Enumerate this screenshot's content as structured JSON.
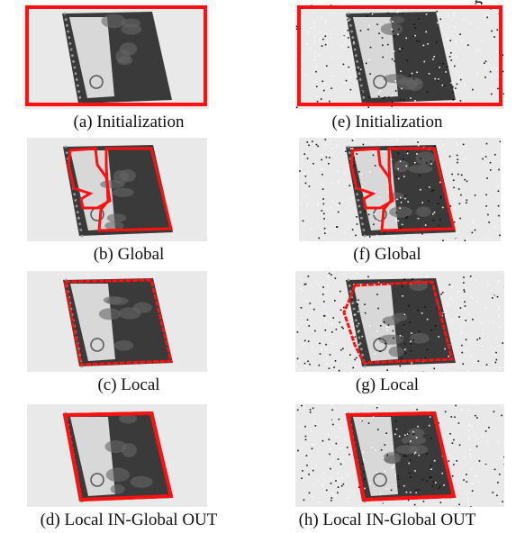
{
  "figure": {
    "top_cut_text": "g",
    "panels": [
      {
        "id": "a",
        "caption": "(a) Initialization",
        "noisy": false,
        "contour": "box"
      },
      {
        "id": "e",
        "caption": "(e) Initialization",
        "noisy": true,
        "contour": "box"
      },
      {
        "id": "b",
        "caption": "(b) Global",
        "noisy": false,
        "contour": "global"
      },
      {
        "id": "f",
        "caption": "(f) Global",
        "noisy": true,
        "contour": "global"
      },
      {
        "id": "c",
        "caption": "(c) Local",
        "noisy": false,
        "contour": "local"
      },
      {
        "id": "g",
        "caption": "(g) Local",
        "noisy": true,
        "contour": "local-noisy"
      },
      {
        "id": "d",
        "caption": "(d) Local IN-Global OUT",
        "noisy": false,
        "contour": "lignout"
      },
      {
        "id": "h",
        "caption": "(h) Local IN-Global OUT",
        "noisy": true,
        "contour": "lignout"
      }
    ],
    "colors": {
      "contour": "#ff1010",
      "cover_dark": "#3a3a3a",
      "label_light": "#d8d8d8",
      "background": "#e9e9e9"
    }
  }
}
